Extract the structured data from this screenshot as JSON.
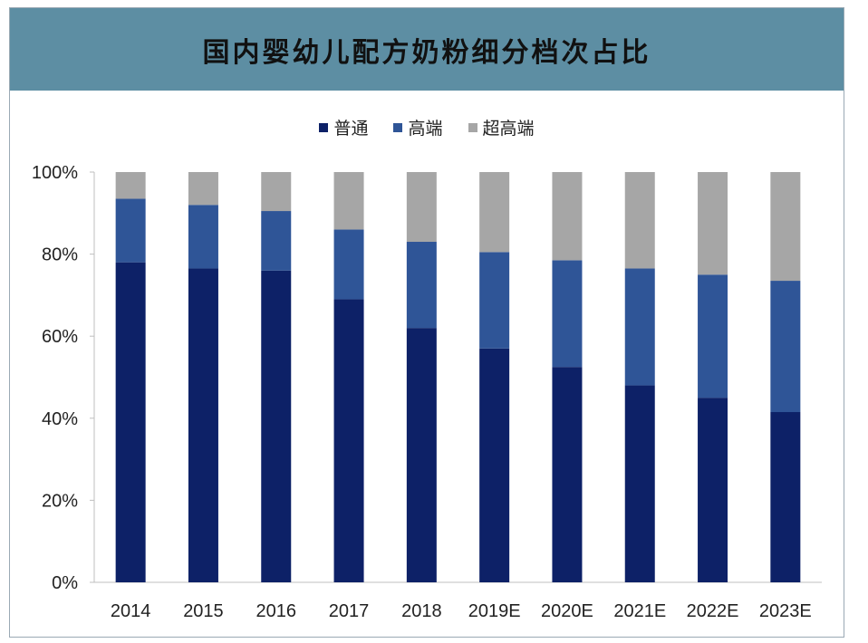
{
  "colors": {
    "header_bg": "#5d8ea3",
    "series": [
      "#0d2167",
      "#2f5597",
      "#a6a6a6"
    ]
  },
  "chart_data": {
    "type": "bar",
    "stacked": true,
    "title": "国内婴幼儿配方奶粉细分档次占比",
    "xlabel": "",
    "ylabel": "",
    "ylim": [
      0,
      100
    ],
    "yticks": [
      "0%",
      "20%",
      "40%",
      "60%",
      "80%",
      "100%"
    ],
    "legend_position": "top",
    "grid": false,
    "categories": [
      "2014",
      "2015",
      "2016",
      "2017",
      "2018",
      "2019E",
      "2020E",
      "2021E",
      "2022E",
      "2023E"
    ],
    "series": [
      {
        "name": "普通",
        "color": "#0d2167",
        "values": [
          78,
          76.5,
          76,
          69,
          62,
          57,
          52.5,
          48,
          45,
          41.5
        ]
      },
      {
        "name": "高端",
        "color": "#2f5597",
        "values": [
          15.5,
          15.5,
          14.5,
          17,
          21,
          23.5,
          26,
          28.5,
          30,
          32
        ]
      },
      {
        "name": "超高端",
        "color": "#a6a6a6",
        "values": [
          6.5,
          8,
          9.5,
          14,
          17,
          19.5,
          21.5,
          23.5,
          25,
          26.5
        ]
      }
    ]
  }
}
